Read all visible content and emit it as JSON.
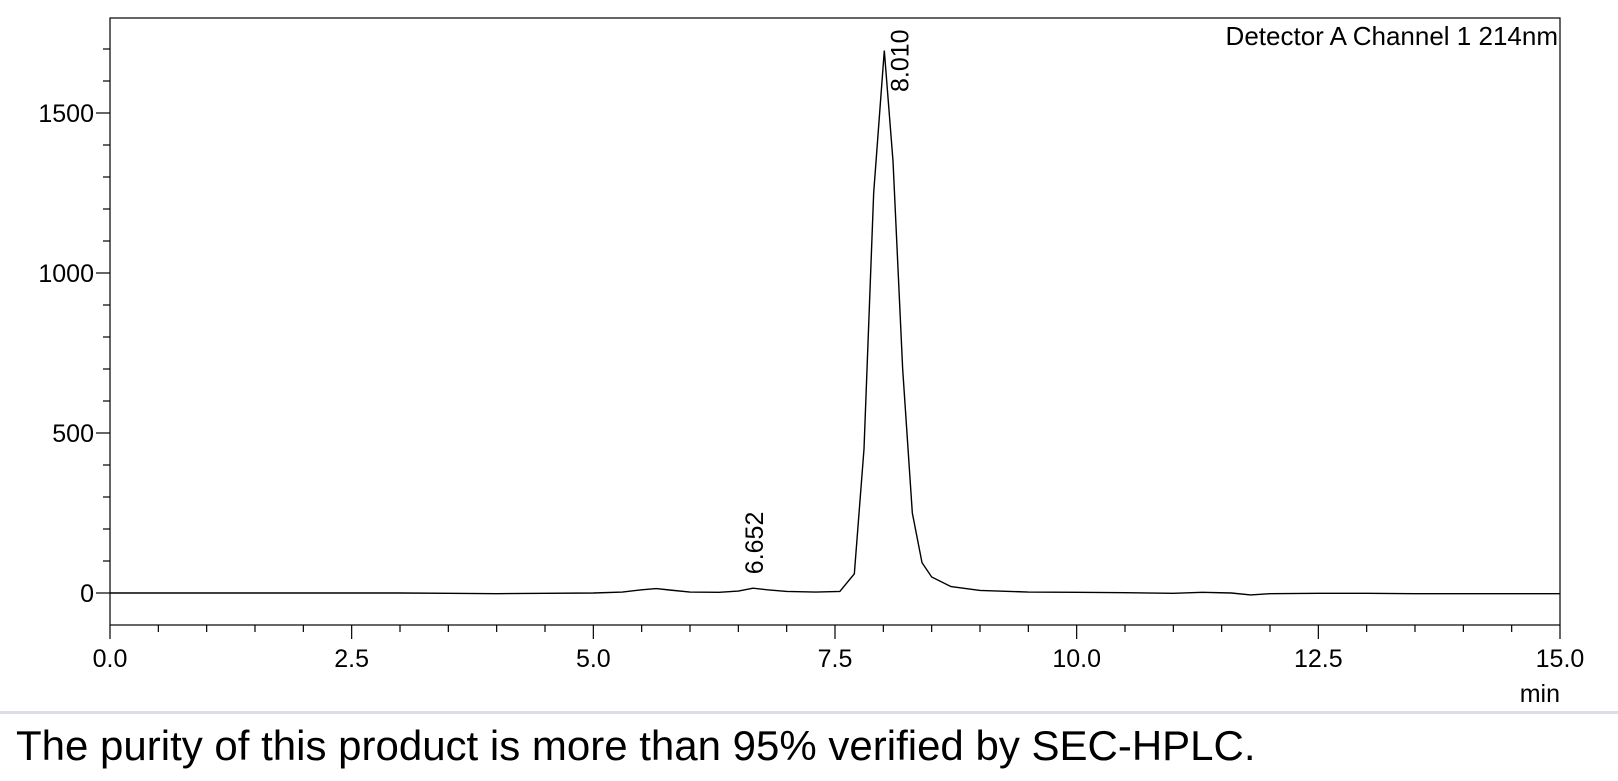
{
  "chart_data": {
    "type": "line",
    "title": "",
    "detector_label": "Detector A Channel 1 214nm",
    "xlabel": "",
    "x_unit": "min",
    "ylabel": "",
    "xlim": [
      0.0,
      15.0
    ],
    "ylim": [
      -100,
      1800
    ],
    "x_ticks": [
      "0.0",
      "2.5",
      "5.0",
      "7.5",
      "10.0",
      "12.5",
      "15.0"
    ],
    "y_ticks": [
      "0",
      "500",
      "1000",
      "1500"
    ],
    "grid": false,
    "peaks": [
      {
        "retention_time": "6.652",
        "x": 6.652,
        "height": 15
      },
      {
        "retention_time": "8.010",
        "x": 8.01,
        "height": 1695
      }
    ],
    "series": [
      {
        "x": [
          0.0,
          0.5,
          1.0,
          1.5,
          2.0,
          2.5,
          3.0,
          3.5,
          4.0,
          4.5,
          5.0,
          5.3,
          5.5,
          5.65,
          5.8,
          6.0,
          6.3,
          6.5,
          6.652,
          6.8,
          7.0,
          7.3,
          7.55,
          7.7,
          7.8,
          7.9,
          8.01,
          8.1,
          8.2,
          8.3,
          8.4,
          8.5,
          8.7,
          9.0,
          9.5,
          10.0,
          10.5,
          11.0,
          11.3,
          11.6,
          11.8,
          12.0,
          12.5,
          13.0,
          13.5,
          14.0,
          14.5,
          15.0
        ],
        "y": [
          0,
          0,
          0,
          0,
          0,
          0,
          0,
          -1,
          -2,
          -1,
          0,
          3,
          10,
          14,
          9,
          3,
          2,
          6,
          15,
          10,
          5,
          3,
          5,
          60,
          450,
          1250,
          1695,
          1350,
          700,
          250,
          95,
          50,
          20,
          8,
          3,
          2,
          1,
          -1,
          2,
          0,
          -6,
          -2,
          -1,
          -1,
          -2,
          -2,
          -2,
          -2
        ]
      }
    ]
  },
  "caption": "The purity of this product is more than 95% verified by SEC-HPLC."
}
